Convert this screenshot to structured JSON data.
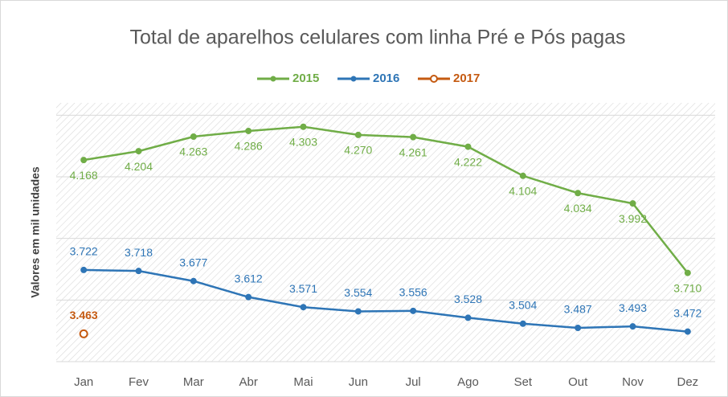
{
  "chart_data": {
    "type": "line",
    "title": "Total de aparelhos celulares com linha Pré e Pós pagas",
    "y_label": "Valores em mil unidades",
    "categories": [
      "Jan",
      "Fev",
      "Mar",
      "Abr",
      "Mai",
      "Jun",
      "Jul",
      "Ago",
      "Set",
      "Out",
      "Nov",
      "Dez"
    ],
    "series": [
      {
        "name": "2015",
        "color": "#70ad47",
        "values": [
          4168,
          4204,
          4263,
          4286,
          4303,
          4270,
          4261,
          4222,
          4104,
          4034,
          3992,
          3710
        ],
        "value_labels": [
          "4.168",
          "4.204",
          "4.263",
          "4.286",
          "4.303",
          "4.270",
          "4.261",
          "4.222",
          "4.104",
          "4.034",
          "3.992",
          "3.710"
        ]
      },
      {
        "name": "2016",
        "color": "#2e75b6",
        "values": [
          3722,
          3718,
          3677,
          3612,
          3571,
          3554,
          3556,
          3528,
          3504,
          3487,
          3493,
          3472
        ],
        "value_labels": [
          "3.722",
          "3.718",
          "3.677",
          "3.612",
          "3.571",
          "3.554",
          "3.556",
          "3.528",
          "3.504",
          "3.487",
          "3.493",
          "3.472"
        ]
      },
      {
        "name": "2017",
        "color": "#c55a11",
        "values": [
          3463,
          null,
          null,
          null,
          null,
          null,
          null,
          null,
          null,
          null,
          null,
          null
        ],
        "value_labels": [
          "3.463",
          null,
          null,
          null,
          null,
          null,
          null,
          null,
          null,
          null,
          null,
          null
        ]
      }
    ],
    "ylim": [
      3350,
      4400
    ],
    "yticks": [
      3350,
      3600,
      3850,
      4100,
      4350
    ],
    "grid": true,
    "legend": "top"
  }
}
